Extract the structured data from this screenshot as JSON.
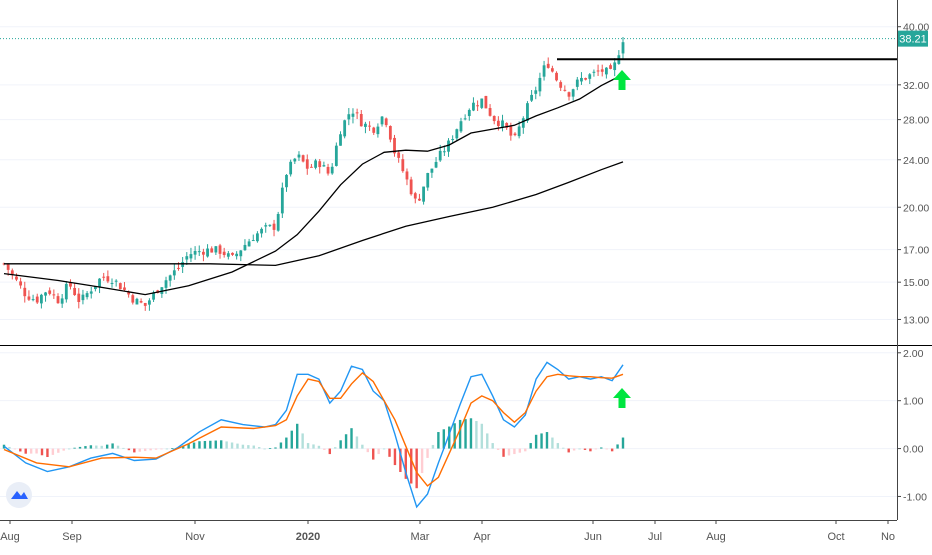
{
  "chart_data": [
    {
      "type": "candlestick",
      "panel": "price",
      "price_scale": "log",
      "last_price": "38.21",
      "ylim": [
        12.2,
        42
      ],
      "y_ticks": [
        "40.00",
        "32.00",
        "28.00",
        "24.00",
        "20.00",
        "17.00",
        "15.00",
        "13.00"
      ],
      "y_tick_values": [
        40,
        32,
        28,
        24,
        20,
        17,
        15,
        13
      ],
      "x_ticks": [
        "Aug",
        "Sep",
        "Nov",
        "2020",
        "Mar",
        "Apr",
        "Jun",
        "Jul",
        "Aug",
        "Oct",
        "No"
      ],
      "resistance_level": 35.3,
      "series": [
        {
          "id": "price",
          "points": [
            {
              "t": 0,
              "v": 16.1
            },
            {
              "t": 2,
              "v": 15.2
            },
            {
              "t": 4,
              "v": 14.3
            },
            {
              "t": 6,
              "v": 14.0
            },
            {
              "t": 8,
              "v": 14.6
            },
            {
              "t": 10,
              "v": 14.0
            },
            {
              "t": 12,
              "v": 14.9
            },
            {
              "t": 14,
              "v": 13.9
            },
            {
              "t": 16,
              "v": 14.6
            },
            {
              "t": 18,
              "v": 15.3
            },
            {
              "t": 20,
              "v": 15.2
            },
            {
              "t": 22,
              "v": 14.6
            },
            {
              "t": 24,
              "v": 14.0
            },
            {
              "t": 26,
              "v": 13.7
            },
            {
              "t": 28,
              "v": 14.5
            },
            {
              "t": 30,
              "v": 15.2
            },
            {
              "t": 32,
              "v": 15.8
            },
            {
              "t": 34,
              "v": 16.7
            },
            {
              "t": 36,
              "v": 16.9
            },
            {
              "t": 38,
              "v": 17.0
            },
            {
              "t": 40,
              "v": 16.9
            },
            {
              "t": 42,
              "v": 16.4
            },
            {
              "t": 44,
              "v": 17.2
            },
            {
              "t": 46,
              "v": 17.9
            },
            {
              "t": 48,
              "v": 18.4
            },
            {
              "t": 50,
              "v": 18.6
            },
            {
              "t": 52,
              "v": 22.8
            },
            {
              "t": 54,
              "v": 24.4
            },
            {
              "t": 56,
              "v": 23.2
            },
            {
              "t": 58,
              "v": 23.8
            },
            {
              "t": 60,
              "v": 22.6
            },
            {
              "t": 62,
              "v": 27.0
            },
            {
              "t": 64,
              "v": 29.2
            },
            {
              "t": 66,
              "v": 27.6
            },
            {
              "t": 68,
              "v": 27.0
            },
            {
              "t": 70,
              "v": 28.6
            },
            {
              "t": 72,
              "v": 24.6
            },
            {
              "t": 74,
              "v": 22.4
            },
            {
              "t": 76,
              "v": 20.2
            },
            {
              "t": 78,
              "v": 22.6
            },
            {
              "t": 80,
              "v": 24.2
            },
            {
              "t": 82,
              "v": 25.6
            },
            {
              "t": 84,
              "v": 27.8
            },
            {
              "t": 86,
              "v": 29.6
            },
            {
              "t": 88,
              "v": 30.2
            },
            {
              "t": 90,
              "v": 28.2
            },
            {
              "t": 92,
              "v": 27.4
            },
            {
              "t": 94,
              "v": 25.8
            },
            {
              "t": 96,
              "v": 28.8
            },
            {
              "t": 98,
              "v": 31.6
            },
            {
              "t": 100,
              "v": 35.0
            },
            {
              "t": 102,
              "v": 32.4
            },
            {
              "t": 104,
              "v": 31.0
            },
            {
              "t": 106,
              "v": 32.6
            },
            {
              "t": 108,
              "v": 33.2
            },
            {
              "t": 110,
              "v": 33.8
            },
            {
              "t": 112,
              "v": 33.4
            },
            {
              "t": 114,
              "v": 38.2
            }
          ]
        },
        {
          "id": "ma-short",
          "points": [
            {
              "t": 0,
              "v": 15.5
            },
            {
              "t": 10,
              "v": 15.1
            },
            {
              "t": 18,
              "v": 14.7
            },
            {
              "t": 26,
              "v": 14.3
            },
            {
              "t": 34,
              "v": 14.8
            },
            {
              "t": 42,
              "v": 15.6
            },
            {
              "t": 50,
              "v": 16.9
            },
            {
              "t": 54,
              "v": 18.0
            },
            {
              "t": 58,
              "v": 19.7
            },
            {
              "t": 62,
              "v": 21.8
            },
            {
              "t": 66,
              "v": 23.6
            },
            {
              "t": 70,
              "v": 24.7
            },
            {
              "t": 74,
              "v": 24.9
            },
            {
              "t": 78,
              "v": 24.8
            },
            {
              "t": 82,
              "v": 25.4
            },
            {
              "t": 86,
              "v": 26.6
            },
            {
              "t": 90,
              "v": 27.0
            },
            {
              "t": 94,
              "v": 27.4
            },
            {
              "t": 98,
              "v": 28.4
            },
            {
              "t": 102,
              "v": 29.3
            },
            {
              "t": 106,
              "v": 30.3
            },
            {
              "t": 110,
              "v": 31.9
            },
            {
              "t": 114,
              "v": 33.3
            }
          ]
        },
        {
          "id": "ma-long",
          "points": [
            {
              "t": 0,
              "v": 16.1
            },
            {
              "t": 20,
              "v": 16.1
            },
            {
              "t": 38,
              "v": 16.1
            },
            {
              "t": 50,
              "v": 16.0
            },
            {
              "t": 58,
              "v": 16.6
            },
            {
              "t": 66,
              "v": 17.6
            },
            {
              "t": 74,
              "v": 18.6
            },
            {
              "t": 82,
              "v": 19.3
            },
            {
              "t": 90,
              "v": 20.0
            },
            {
              "t": 98,
              "v": 21.0
            },
            {
              "t": 104,
              "v": 22.0
            },
            {
              "t": 110,
              "v": 23.1
            },
            {
              "t": 114,
              "v": 23.8
            }
          ]
        }
      ]
    },
    {
      "type": "macd",
      "panel": "indicator",
      "ylim": [
        -1.45,
        2.1
      ],
      "y_ticks": [
        "2.00",
        "1.00",
        "0.00",
        "-1.00"
      ],
      "y_tick_values": [
        2,
        1,
        0,
        -1
      ],
      "series": [
        {
          "id": "macd-line",
          "points": [
            {
              "t": 0,
              "v": 0.05
            },
            {
              "t": 4,
              "v": -0.3
            },
            {
              "t": 8,
              "v": -0.48
            },
            {
              "t": 12,
              "v": -0.38
            },
            {
              "t": 16,
              "v": -0.2
            },
            {
              "t": 20,
              "v": -0.1
            },
            {
              "t": 24,
              "v": -0.25
            },
            {
              "t": 28,
              "v": -0.22
            },
            {
              "t": 32,
              "v": 0.02
            },
            {
              "t": 36,
              "v": 0.35
            },
            {
              "t": 40,
              "v": 0.6
            },
            {
              "t": 44,
              "v": 0.5
            },
            {
              "t": 48,
              "v": 0.45
            },
            {
              "t": 50,
              "v": 0.5
            },
            {
              "t": 52,
              "v": 0.8
            },
            {
              "t": 54,
              "v": 1.55
            },
            {
              "t": 56,
              "v": 1.55
            },
            {
              "t": 58,
              "v": 1.45
            },
            {
              "t": 60,
              "v": 0.95
            },
            {
              "t": 62,
              "v": 1.2
            },
            {
              "t": 64,
              "v": 1.72
            },
            {
              "t": 66,
              "v": 1.65
            },
            {
              "t": 68,
              "v": 1.2
            },
            {
              "t": 70,
              "v": 1.0
            },
            {
              "t": 72,
              "v": 0.3
            },
            {
              "t": 74,
              "v": -0.5
            },
            {
              "t": 76,
              "v": -1.22
            },
            {
              "t": 78,
              "v": -0.95
            },
            {
              "t": 80,
              "v": -0.3
            },
            {
              "t": 82,
              "v": 0.3
            },
            {
              "t": 84,
              "v": 0.92
            },
            {
              "t": 86,
              "v": 1.5
            },
            {
              "t": 88,
              "v": 1.55
            },
            {
              "t": 90,
              "v": 1.1
            },
            {
              "t": 92,
              "v": 0.6
            },
            {
              "t": 94,
              "v": 0.45
            },
            {
              "t": 96,
              "v": 0.7
            },
            {
              "t": 98,
              "v": 1.45
            },
            {
              "t": 100,
              "v": 1.8
            },
            {
              "t": 102,
              "v": 1.65
            },
            {
              "t": 104,
              "v": 1.45
            },
            {
              "t": 106,
              "v": 1.5
            },
            {
              "t": 108,
              "v": 1.45
            },
            {
              "t": 110,
              "v": 1.5
            },
            {
              "t": 112,
              "v": 1.42
            },
            {
              "t": 114,
              "v": 1.75
            }
          ]
        },
        {
          "id": "signal-line",
          "points": [
            {
              "t": 0,
              "v": -0.02
            },
            {
              "t": 6,
              "v": -0.3
            },
            {
              "t": 12,
              "v": -0.38
            },
            {
              "t": 18,
              "v": -0.2
            },
            {
              "t": 24,
              "v": -0.18
            },
            {
              "t": 28,
              "v": -0.2
            },
            {
              "t": 34,
              "v": 0.1
            },
            {
              "t": 40,
              "v": 0.45
            },
            {
              "t": 46,
              "v": 0.42
            },
            {
              "t": 50,
              "v": 0.48
            },
            {
              "t": 52,
              "v": 0.6
            },
            {
              "t": 54,
              "v": 1.1
            },
            {
              "t": 56,
              "v": 1.45
            },
            {
              "t": 58,
              "v": 1.4
            },
            {
              "t": 60,
              "v": 1.05
            },
            {
              "t": 62,
              "v": 1.05
            },
            {
              "t": 64,
              "v": 1.35
            },
            {
              "t": 66,
              "v": 1.58
            },
            {
              "t": 68,
              "v": 1.4
            },
            {
              "t": 70,
              "v": 1.0
            },
            {
              "t": 72,
              "v": 0.6
            },
            {
              "t": 74,
              "v": 0.05
            },
            {
              "t": 76,
              "v": -0.5
            },
            {
              "t": 78,
              "v": -0.78
            },
            {
              "t": 80,
              "v": -0.6
            },
            {
              "t": 82,
              "v": -0.1
            },
            {
              "t": 84,
              "v": 0.4
            },
            {
              "t": 86,
              "v": 0.95
            },
            {
              "t": 88,
              "v": 1.1
            },
            {
              "t": 90,
              "v": 1.0
            },
            {
              "t": 92,
              "v": 0.75
            },
            {
              "t": 94,
              "v": 0.55
            },
            {
              "t": 96,
              "v": 0.75
            },
            {
              "t": 98,
              "v": 1.2
            },
            {
              "t": 100,
              "v": 1.5
            },
            {
              "t": 102,
              "v": 1.55
            },
            {
              "t": 104,
              "v": 1.52
            },
            {
              "t": 106,
              "v": 1.5
            },
            {
              "t": 108,
              "v": 1.5
            },
            {
              "t": 110,
              "v": 1.48
            },
            {
              "t": 112,
              "v": 1.47
            },
            {
              "t": 114,
              "v": 1.55
            }
          ]
        }
      ]
    }
  ],
  "colors": {
    "up": "#26a69a",
    "down": "#ef5350",
    "up_hist": "#26a69a",
    "down_hist": "#ef5350",
    "macd": "#2196f3",
    "signal": "#ff6d00",
    "ma": "#000000",
    "arrow": "#00e640",
    "price_tag": "#26a69a",
    "axis_text": "#555555",
    "grid": "#f0f3fa"
  },
  "icons": [
    "up-arrow-icon",
    "tradingview-logo-icon"
  ]
}
